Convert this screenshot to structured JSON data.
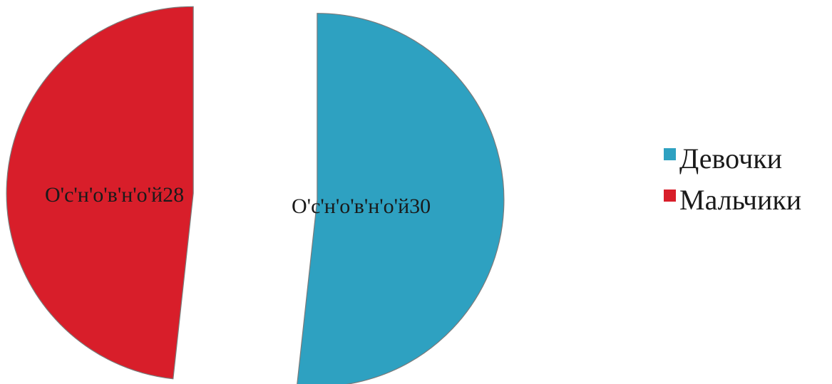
{
  "chart_data": {
    "type": "pie",
    "exploded": true,
    "title": "",
    "slices": [
      {
        "name": "Девочки",
        "value": 30,
        "label": "О'с'н'о'в'н'о'й30",
        "color": "#2ea1c1"
      },
      {
        "name": "Мальчики",
        "value": 28,
        "label": "О'с'н'о'в'н'о'й28",
        "color": "#d81e2a"
      }
    ],
    "legend": {
      "position": "right",
      "entries": [
        "Девочки",
        "Мальчики"
      ]
    }
  }
}
